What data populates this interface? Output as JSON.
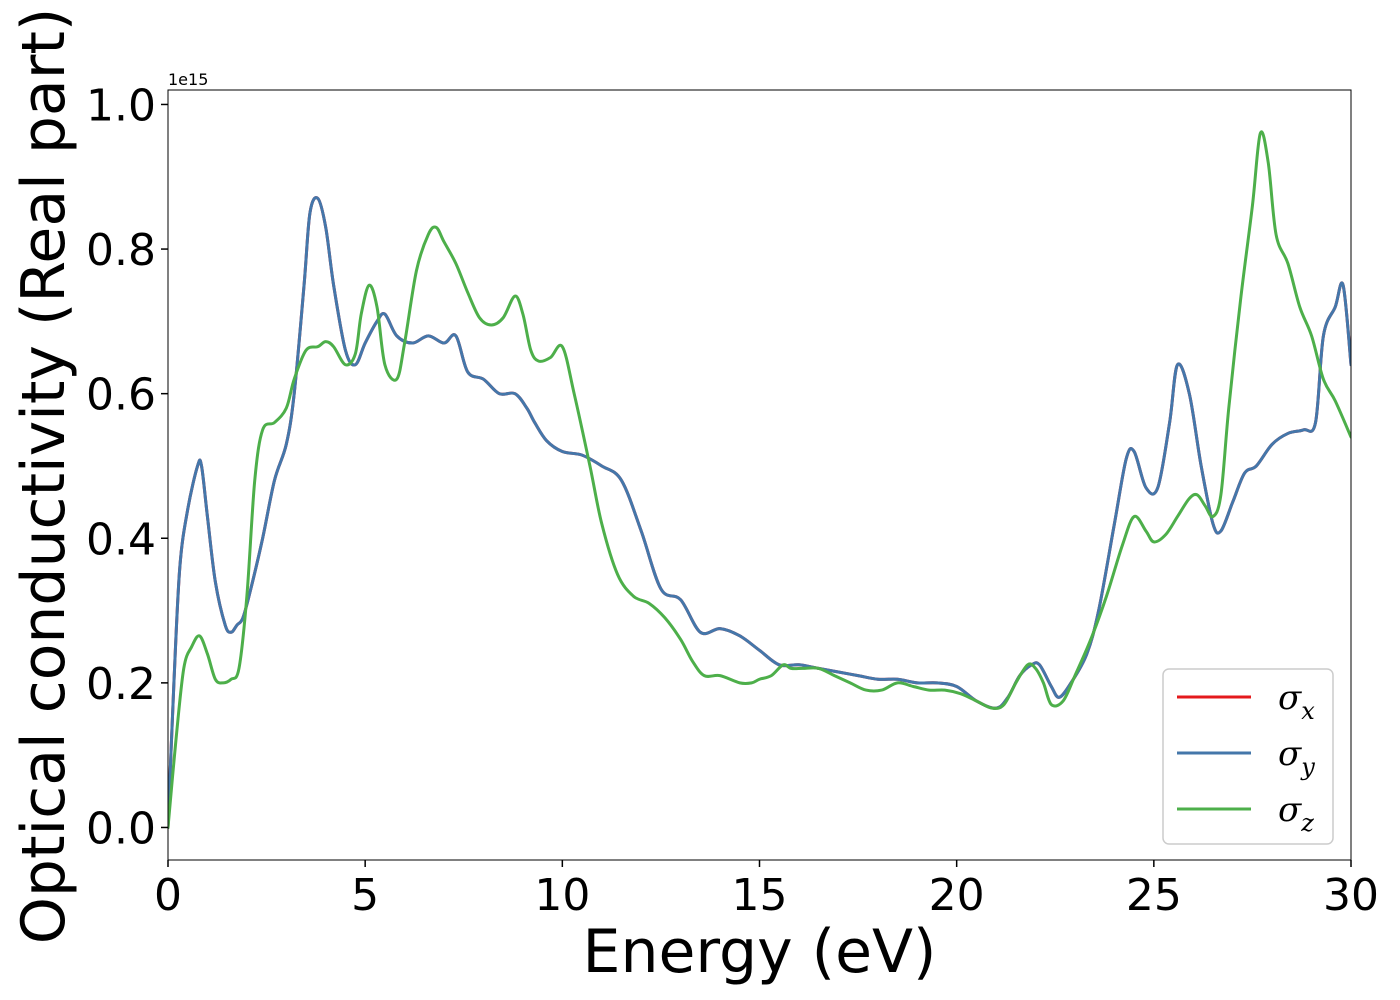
{
  "chart_data": {
    "type": "line",
    "title": "",
    "xlabel": "Energy (eV)",
    "ylabel": "Optical conductivity (Real part)",
    "y_offset_label": "1e15",
    "xlim": [
      0,
      30
    ],
    "ylim": [
      -0.045,
      1.02
    ],
    "x_ticks": [
      0,
      5,
      10,
      15,
      20,
      25,
      30
    ],
    "x_tick_labels": [
      "0",
      "5",
      "10",
      "15",
      "20",
      "25",
      "30"
    ],
    "y_ticks": [
      0.0,
      0.2,
      0.4,
      0.6,
      0.8,
      1.0
    ],
    "y_tick_labels": [
      "0.0",
      "0.2",
      "0.4",
      "0.6",
      "0.8",
      "1.0"
    ],
    "grid": false,
    "legend_position": "bottom-right",
    "series": [
      {
        "name": "σx",
        "legend_main": "σ",
        "legend_sub": "x",
        "color": "#e41a1c",
        "x": [
          0,
          0.15,
          0.3,
          0.5,
          0.75,
          0.85,
          1.0,
          1.2,
          1.45,
          1.6,
          1.75,
          1.9,
          2.1,
          2.4,
          2.7,
          3.0,
          3.2,
          3.45,
          3.6,
          3.8,
          4.0,
          4.2,
          4.5,
          4.75,
          5.0,
          5.3,
          5.5,
          5.8,
          6.2,
          6.6,
          7.0,
          7.3,
          7.6,
          8.0,
          8.4,
          8.8,
          9.1,
          9.3,
          9.6,
          10.0,
          10.5,
          11.0,
          11.5,
          12.0,
          12.5,
          13.0,
          13.5,
          14.0,
          14.5,
          15.0,
          15.5,
          16.0,
          16.5,
          17.0,
          17.5,
          18.0,
          18.5,
          19.0,
          19.5,
          20.0,
          20.5,
          21.0,
          21.3,
          21.6,
          21.9,
          22.1,
          22.4,
          22.6,
          22.9,
          23.3,
          23.6,
          24.0,
          24.3,
          24.5,
          24.8,
          25.1,
          25.4,
          25.6,
          25.9,
          26.2,
          26.5,
          26.7,
          27.0,
          27.3,
          27.6,
          28.0,
          28.4,
          28.8,
          29.1,
          29.3,
          29.6,
          29.8,
          30.0
        ],
        "values": [
          0.0,
          0.2,
          0.36,
          0.44,
          0.5,
          0.5,
          0.43,
          0.34,
          0.28,
          0.27,
          0.28,
          0.29,
          0.33,
          0.4,
          0.48,
          0.53,
          0.6,
          0.75,
          0.85,
          0.87,
          0.83,
          0.75,
          0.66,
          0.64,
          0.67,
          0.7,
          0.71,
          0.68,
          0.67,
          0.68,
          0.67,
          0.68,
          0.63,
          0.62,
          0.6,
          0.6,
          0.58,
          0.56,
          0.535,
          0.52,
          0.515,
          0.5,
          0.48,
          0.41,
          0.33,
          0.315,
          0.27,
          0.275,
          0.265,
          0.245,
          0.225,
          0.225,
          0.22,
          0.215,
          0.21,
          0.205,
          0.205,
          0.2,
          0.2,
          0.195,
          0.175,
          0.165,
          0.18,
          0.21,
          0.225,
          0.225,
          0.195,
          0.18,
          0.2,
          0.24,
          0.3,
          0.42,
          0.51,
          0.52,
          0.47,
          0.47,
          0.56,
          0.64,
          0.6,
          0.5,
          0.42,
          0.41,
          0.45,
          0.49,
          0.5,
          0.53,
          0.545,
          0.55,
          0.56,
          0.68,
          0.72,
          0.75,
          0.64
        ]
      },
      {
        "name": "σy",
        "legend_main": "σ",
        "legend_sub": "y",
        "color": "#4477aa",
        "x": [
          0,
          0.15,
          0.3,
          0.5,
          0.75,
          0.85,
          1.0,
          1.2,
          1.45,
          1.6,
          1.75,
          1.9,
          2.1,
          2.4,
          2.7,
          3.0,
          3.2,
          3.45,
          3.6,
          3.8,
          4.0,
          4.2,
          4.5,
          4.75,
          5.0,
          5.3,
          5.5,
          5.8,
          6.2,
          6.6,
          7.0,
          7.3,
          7.6,
          8.0,
          8.4,
          8.8,
          9.1,
          9.3,
          9.6,
          10.0,
          10.5,
          11.0,
          11.5,
          12.0,
          12.5,
          13.0,
          13.5,
          14.0,
          14.5,
          15.0,
          15.5,
          16.0,
          16.5,
          17.0,
          17.5,
          18.0,
          18.5,
          19.0,
          19.5,
          20.0,
          20.5,
          21.0,
          21.3,
          21.6,
          21.9,
          22.1,
          22.4,
          22.6,
          22.9,
          23.3,
          23.6,
          24.0,
          24.3,
          24.5,
          24.8,
          25.1,
          25.4,
          25.6,
          25.9,
          26.2,
          26.5,
          26.7,
          27.0,
          27.3,
          27.6,
          28.0,
          28.4,
          28.8,
          29.1,
          29.3,
          29.6,
          29.8,
          30.0
        ],
        "values": [
          0.0,
          0.2,
          0.36,
          0.44,
          0.5,
          0.5,
          0.43,
          0.34,
          0.28,
          0.27,
          0.28,
          0.29,
          0.33,
          0.4,
          0.48,
          0.53,
          0.6,
          0.75,
          0.85,
          0.87,
          0.83,
          0.75,
          0.66,
          0.64,
          0.67,
          0.7,
          0.71,
          0.68,
          0.67,
          0.68,
          0.67,
          0.68,
          0.63,
          0.62,
          0.6,
          0.6,
          0.58,
          0.56,
          0.535,
          0.52,
          0.515,
          0.5,
          0.48,
          0.41,
          0.33,
          0.315,
          0.27,
          0.275,
          0.265,
          0.245,
          0.225,
          0.225,
          0.22,
          0.215,
          0.21,
          0.205,
          0.205,
          0.2,
          0.2,
          0.195,
          0.175,
          0.165,
          0.18,
          0.21,
          0.225,
          0.225,
          0.195,
          0.18,
          0.2,
          0.24,
          0.3,
          0.42,
          0.51,
          0.52,
          0.47,
          0.47,
          0.56,
          0.64,
          0.6,
          0.5,
          0.42,
          0.41,
          0.45,
          0.49,
          0.5,
          0.53,
          0.545,
          0.55,
          0.56,
          0.68,
          0.72,
          0.75,
          0.64
        ]
      },
      {
        "name": "σz",
        "legend_main": "σ",
        "legend_sub": "z",
        "color": "#4daf4a",
        "x": [
          0,
          0.2,
          0.4,
          0.6,
          0.8,
          1.0,
          1.2,
          1.4,
          1.6,
          1.8,
          2.0,
          2.2,
          2.4,
          2.7,
          3.0,
          3.2,
          3.5,
          3.8,
          4.0,
          4.2,
          4.5,
          4.75,
          4.9,
          5.1,
          5.3,
          5.5,
          5.8,
          6.0,
          6.3,
          6.6,
          6.8,
          7.0,
          7.3,
          7.6,
          7.9,
          8.2,
          8.5,
          8.8,
          9.0,
          9.2,
          9.4,
          9.7,
          10.0,
          10.3,
          10.7,
          11.0,
          11.4,
          11.8,
          12.2,
          12.6,
          13.0,
          13.3,
          13.6,
          14.0,
          14.5,
          14.8,
          15.0,
          15.3,
          15.6,
          15.8,
          16.1,
          16.5,
          16.9,
          17.3,
          17.7,
          18.1,
          18.5,
          18.9,
          19.3,
          19.7,
          20.1,
          20.5,
          20.9,
          21.2,
          21.5,
          21.8,
          22.0,
          22.2,
          22.4,
          22.7,
          23.0,
          23.4,
          23.8,
          24.2,
          24.5,
          24.8,
          25.0,
          25.3,
          25.6,
          25.9,
          26.1,
          26.3,
          26.5,
          26.7,
          26.9,
          27.2,
          27.5,
          27.7,
          27.9,
          28.1,
          28.4,
          28.7,
          29.0,
          29.3,
          29.6,
          30.0
        ],
        "values": [
          0.0,
          0.12,
          0.22,
          0.25,
          0.265,
          0.24,
          0.205,
          0.2,
          0.205,
          0.22,
          0.32,
          0.48,
          0.55,
          0.56,
          0.58,
          0.62,
          0.66,
          0.665,
          0.672,
          0.665,
          0.64,
          0.655,
          0.71,
          0.75,
          0.72,
          0.64,
          0.62,
          0.67,
          0.77,
          0.82,
          0.83,
          0.81,
          0.78,
          0.74,
          0.705,
          0.695,
          0.705,
          0.735,
          0.71,
          0.66,
          0.645,
          0.65,
          0.665,
          0.6,
          0.5,
          0.42,
          0.35,
          0.32,
          0.31,
          0.29,
          0.26,
          0.23,
          0.21,
          0.21,
          0.2,
          0.2,
          0.205,
          0.21,
          0.225,
          0.22,
          0.22,
          0.22,
          0.21,
          0.2,
          0.19,
          0.19,
          0.2,
          0.195,
          0.19,
          0.19,
          0.185,
          0.175,
          0.165,
          0.17,
          0.2,
          0.225,
          0.22,
          0.2,
          0.17,
          0.175,
          0.21,
          0.26,
          0.32,
          0.39,
          0.43,
          0.41,
          0.395,
          0.405,
          0.43,
          0.455,
          0.46,
          0.445,
          0.43,
          0.46,
          0.58,
          0.73,
          0.86,
          0.96,
          0.92,
          0.82,
          0.78,
          0.72,
          0.68,
          0.62,
          0.59,
          0.54
        ]
      }
    ]
  }
}
